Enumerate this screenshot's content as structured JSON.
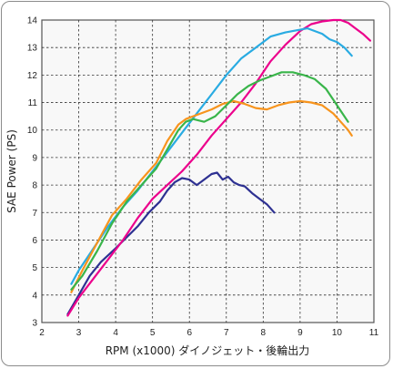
{
  "chart_data": {
    "type": "line",
    "title": "",
    "xlabel": "RPM (x1000) ダイノジェット・後輪出力",
    "ylabel": "SAE Power (PS)",
    "xlim": [
      2,
      11
    ],
    "ylim": [
      3,
      14
    ],
    "xticks": [
      2,
      3,
      4,
      5,
      6,
      7,
      8,
      9,
      10,
      11
    ],
    "yticks": [
      3,
      4,
      5,
      6,
      7,
      8,
      9,
      10,
      11,
      12,
      13,
      14
    ],
    "grid": true,
    "legend": "none",
    "series": [
      {
        "color": "#2e3192",
        "points": [
          [
            2.7,
            3.3
          ],
          [
            3.0,
            4.0
          ],
          [
            3.3,
            4.7
          ],
          [
            3.6,
            5.2
          ],
          [
            4.0,
            5.7
          ],
          [
            4.3,
            6.1
          ],
          [
            4.6,
            6.5
          ],
          [
            4.9,
            7.0
          ],
          [
            5.2,
            7.4
          ],
          [
            5.4,
            7.8
          ],
          [
            5.6,
            8.1
          ],
          [
            5.8,
            8.25
          ],
          [
            6.0,
            8.2
          ],
          [
            6.2,
            8.0
          ],
          [
            6.4,
            8.2
          ],
          [
            6.6,
            8.4
          ],
          [
            6.75,
            8.45
          ],
          [
            6.9,
            8.2
          ],
          [
            7.05,
            8.3
          ],
          [
            7.2,
            8.1
          ],
          [
            7.35,
            8.0
          ],
          [
            7.5,
            7.95
          ],
          [
            7.7,
            7.7
          ],
          [
            7.9,
            7.5
          ],
          [
            8.1,
            7.3
          ],
          [
            8.3,
            7.0
          ]
        ]
      },
      {
        "color": "#ec008c",
        "points": [
          [
            2.7,
            3.25
          ],
          [
            3.0,
            3.9
          ],
          [
            3.4,
            4.6
          ],
          [
            3.8,
            5.3
          ],
          [
            4.2,
            6.0
          ],
          [
            4.6,
            6.8
          ],
          [
            5.0,
            7.5
          ],
          [
            5.4,
            8.0
          ],
          [
            5.8,
            8.5
          ],
          [
            6.2,
            9.1
          ],
          [
            6.6,
            9.8
          ],
          [
            7.0,
            10.4
          ],
          [
            7.4,
            11.0
          ],
          [
            7.8,
            11.7
          ],
          [
            8.2,
            12.5
          ],
          [
            8.6,
            13.1
          ],
          [
            9.0,
            13.6
          ],
          [
            9.3,
            13.85
          ],
          [
            9.6,
            13.95
          ],
          [
            9.9,
            14.0
          ],
          [
            10.1,
            14.0
          ],
          [
            10.3,
            13.9
          ],
          [
            10.5,
            13.7
          ],
          [
            10.7,
            13.5
          ],
          [
            10.9,
            13.25
          ]
        ]
      },
      {
        "color": "#29abe2",
        "points": [
          [
            2.8,
            4.4
          ],
          [
            3.0,
            4.9
          ],
          [
            3.4,
            5.7
          ],
          [
            3.8,
            6.5
          ],
          [
            4.2,
            7.2
          ],
          [
            4.6,
            7.8
          ],
          [
            5.0,
            8.5
          ],
          [
            5.4,
            9.2
          ],
          [
            5.8,
            9.9
          ],
          [
            6.2,
            10.6
          ],
          [
            6.6,
            11.3
          ],
          [
            7.0,
            12.0
          ],
          [
            7.4,
            12.6
          ],
          [
            7.8,
            13.0
          ],
          [
            8.2,
            13.4
          ],
          [
            8.6,
            13.55
          ],
          [
            9.0,
            13.65
          ],
          [
            9.2,
            13.7
          ],
          [
            9.4,
            13.6
          ],
          [
            9.6,
            13.5
          ],
          [
            9.8,
            13.3
          ],
          [
            10.0,
            13.2
          ],
          [
            10.2,
            13.0
          ],
          [
            10.4,
            12.7
          ]
        ]
      },
      {
        "color": "#f7941d",
        "points": [
          [
            2.8,
            4.1
          ],
          [
            3.1,
            4.9
          ],
          [
            3.5,
            5.9
          ],
          [
            3.9,
            6.9
          ],
          [
            4.3,
            7.5
          ],
          [
            4.7,
            8.2
          ],
          [
            5.1,
            8.8
          ],
          [
            5.4,
            9.6
          ],
          [
            5.7,
            10.2
          ],
          [
            5.9,
            10.4
          ],
          [
            6.1,
            10.5
          ],
          [
            6.3,
            10.6
          ],
          [
            6.6,
            10.75
          ],
          [
            6.9,
            10.95
          ],
          [
            7.2,
            11.05
          ],
          [
            7.5,
            10.95
          ],
          [
            7.8,
            10.8
          ],
          [
            8.1,
            10.75
          ],
          [
            8.4,
            10.9
          ],
          [
            8.7,
            11.0
          ],
          [
            9.0,
            11.05
          ],
          [
            9.3,
            11.0
          ],
          [
            9.6,
            10.9
          ],
          [
            9.9,
            10.6
          ],
          [
            10.1,
            10.3
          ],
          [
            10.3,
            10.0
          ],
          [
            10.4,
            9.8
          ]
        ]
      },
      {
        "color": "#39b54a",
        "points": [
          [
            2.8,
            4.2
          ],
          [
            3.1,
            4.7
          ],
          [
            3.5,
            5.6
          ],
          [
            3.9,
            6.6
          ],
          [
            4.3,
            7.4
          ],
          [
            4.7,
            8.0
          ],
          [
            5.1,
            8.6
          ],
          [
            5.4,
            9.3
          ],
          [
            5.7,
            10.0
          ],
          [
            5.9,
            10.3
          ],
          [
            6.1,
            10.4
          ],
          [
            6.4,
            10.3
          ],
          [
            6.7,
            10.5
          ],
          [
            7.0,
            10.9
          ],
          [
            7.3,
            11.3
          ],
          [
            7.6,
            11.6
          ],
          [
            7.9,
            11.8
          ],
          [
            8.2,
            11.95
          ],
          [
            8.5,
            12.1
          ],
          [
            8.8,
            12.1
          ],
          [
            9.1,
            12.0
          ],
          [
            9.4,
            11.85
          ],
          [
            9.7,
            11.5
          ],
          [
            9.9,
            11.1
          ],
          [
            10.1,
            10.7
          ],
          [
            10.3,
            10.3
          ]
        ]
      }
    ]
  }
}
